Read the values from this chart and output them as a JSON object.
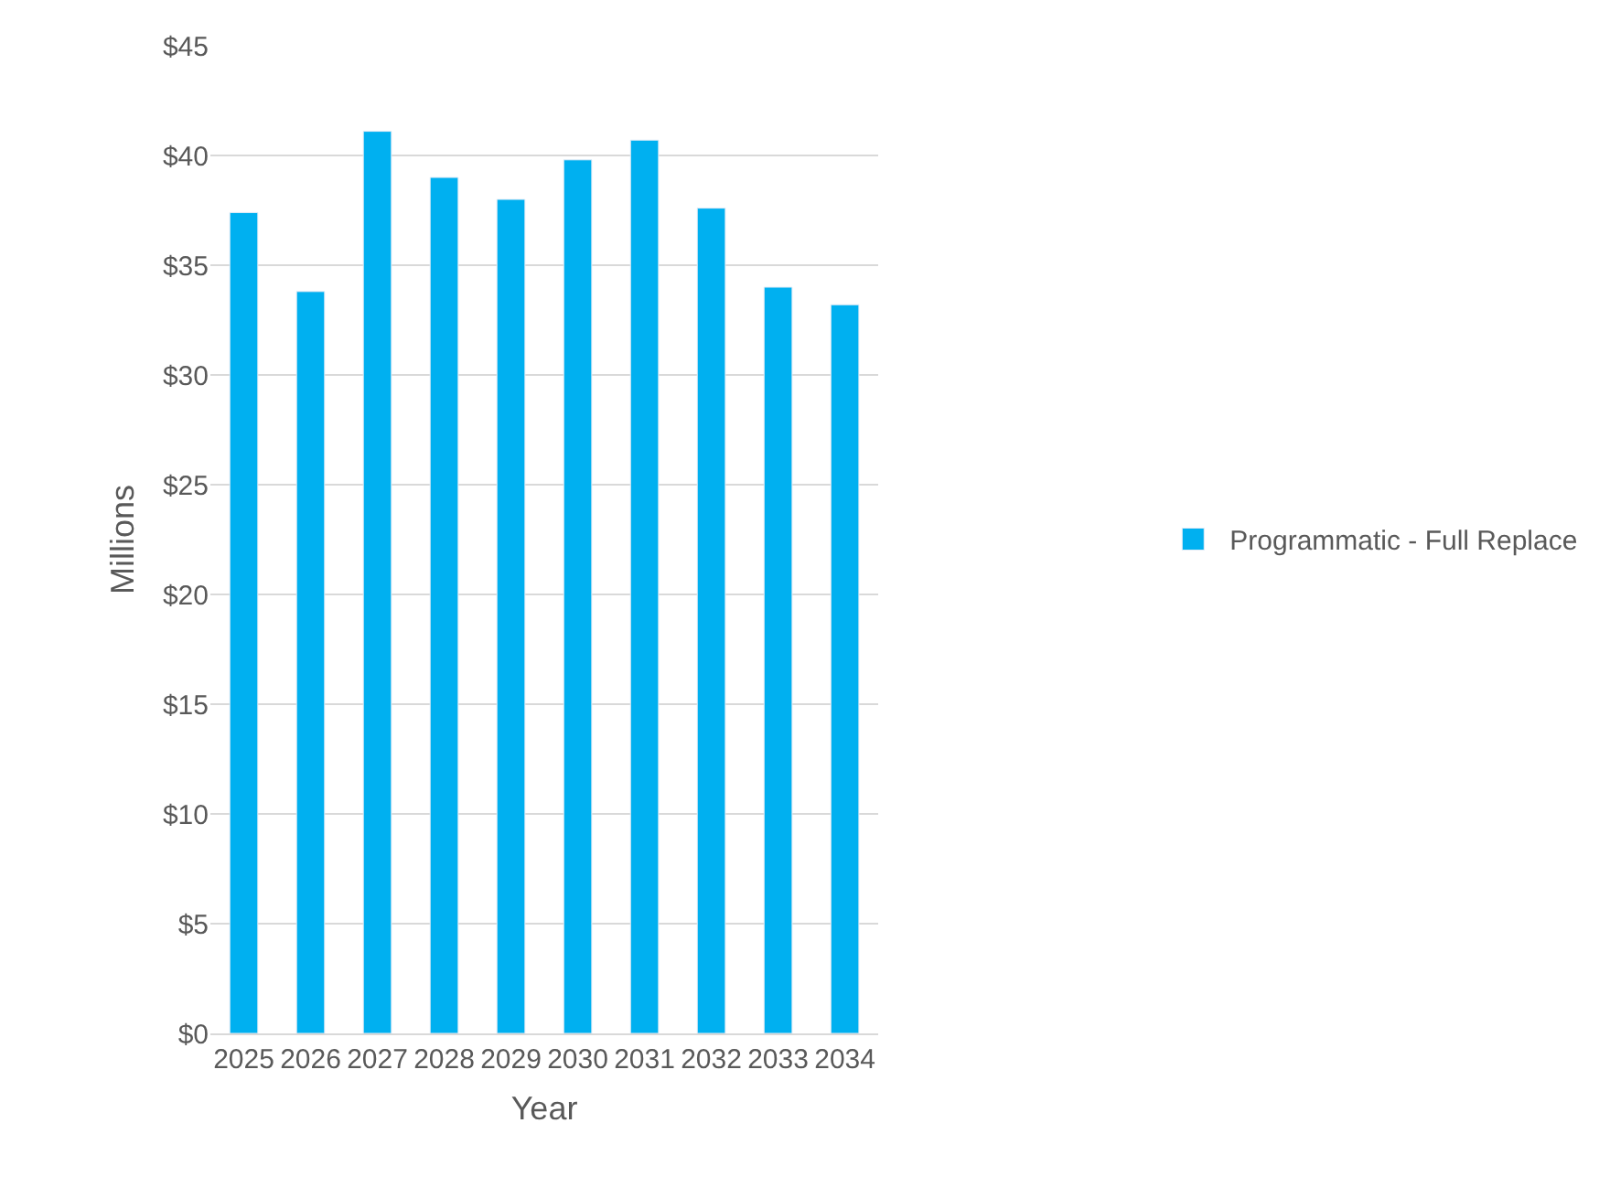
{
  "chart_data": {
    "type": "bar",
    "xlabel": "Year",
    "ylabel": "Millions",
    "categories": [
      "2025",
      "2026",
      "2027",
      "2028",
      "2029",
      "2030",
      "2031",
      "2032",
      "2033",
      "2034"
    ],
    "series": [
      {
        "name": "Programmatic - Full Replace",
        "color": "#00b0f0",
        "values": [
          37.4,
          33.8,
          41.1,
          39.0,
          38.0,
          39.8,
          40.7,
          37.6,
          34.0,
          33.2
        ]
      }
    ],
    "ylim": [
      0,
      45
    ],
    "yticks": [
      {
        "value": 0,
        "label": "$0"
      },
      {
        "value": 5,
        "label": "$5"
      },
      {
        "value": 10,
        "label": "$10"
      },
      {
        "value": 15,
        "label": "$15"
      },
      {
        "value": 20,
        "label": "$20"
      },
      {
        "value": 25,
        "label": "$25"
      },
      {
        "value": 30,
        "label": "$30"
      },
      {
        "value": 35,
        "label": "$35"
      },
      {
        "value": 40,
        "label": "$40"
      },
      {
        "value": 45,
        "label": "$45"
      }
    ],
    "grid": "y",
    "legend": "right"
  }
}
